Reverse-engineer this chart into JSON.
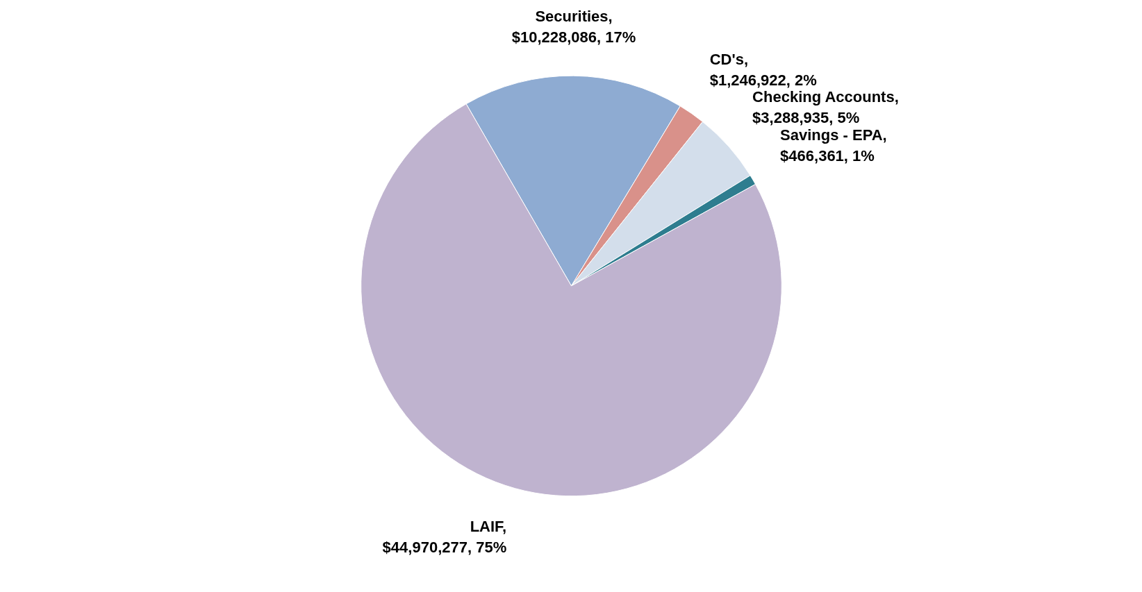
{
  "chart_data": {
    "type": "pie",
    "categories": [
      "Securities",
      "CD's",
      "Checking Accounts",
      "Savings - EPA",
      "LAIF"
    ],
    "values": [
      10228086,
      1246922,
      3288935,
      466361,
      44970277
    ],
    "value_labels": [
      ", $10,228,086, 17%",
      ", $1,246,922, 2%",
      ", $3,288,935, 5%",
      ", $466,361, 1%",
      ", $44,970,277, 75%"
    ],
    "colors": [
      "#8eabd2",
      "#d9918a",
      "#d3deeb",
      "#2e7d8f",
      "#bfb3cf"
    ],
    "legend": false
  }
}
